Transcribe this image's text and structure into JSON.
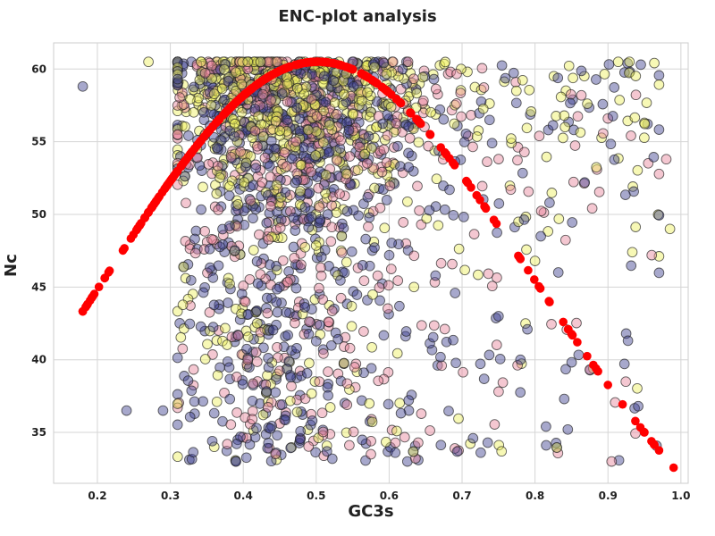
{
  "chart_data": {
    "type": "scatter",
    "title": "ENC-plot analysis",
    "xlabel": "GC3s",
    "ylabel": "Nc",
    "xlim": [
      0.14,
      1.01
    ],
    "ylim": [
      31.5,
      61.8
    ],
    "x_ticks": [
      0.2,
      0.3,
      0.4,
      0.5,
      0.6,
      0.7,
      0.8,
      0.9,
      1.0
    ],
    "x_tick_labels": [
      "0.2",
      "0.3",
      "0.4",
      "0.5",
      "0.6",
      "0.7",
      "0.8",
      "0.9",
      "1.0"
    ],
    "y_ticks": [
      35,
      40,
      45,
      50,
      55,
      60
    ],
    "y_tick_labels": [
      "35",
      "40",
      "45",
      "50",
      "55",
      "60"
    ],
    "grid": true,
    "legend": "none",
    "colors": {
      "expected_curve": "#ff0000",
      "purple_points": "#3b3d8f",
      "pink_points": "#e7829a",
      "yellow_points": "#eef05a",
      "marker_edge": "#222222",
      "grid": "#d5d5d5",
      "axes_edge": "#cccccc"
    },
    "expected_curve": {
      "formula": "2 + GC3s + 29 / (GC3s^2 + (1 - GC3s)^2)",
      "x_range": [
        0.18,
        0.99
      ]
    },
    "observed_genes": {
      "groups": [
        "purple",
        "pink",
        "yellow"
      ],
      "approx_points_per_group": [
        700,
        550,
        650
      ],
      "x_mode": 0.43,
      "x_spread_range": [
        0.18,
        0.99
      ],
      "y_range": [
        32.9,
        60.5
      ],
      "sample_points": [
        {
          "x": 0.18,
          "y": 58.8,
          "group": "purple"
        },
        {
          "x": 0.27,
          "y": 60.5,
          "group": "yellow"
        },
        {
          "x": 0.24,
          "y": 36.5,
          "group": "purple"
        },
        {
          "x": 0.29,
          "y": 36.5,
          "group": "purple"
        },
        {
          "x": 0.98,
          "y": 53.8,
          "group": "pink"
        },
        {
          "x": 0.985,
          "y": 49.0,
          "group": "yellow"
        },
        {
          "x": 0.96,
          "y": 47.2,
          "group": "pink"
        },
        {
          "x": 0.95,
          "y": 56.3,
          "group": "yellow"
        },
        {
          "x": 0.905,
          "y": 33.0,
          "group": "pink"
        },
        {
          "x": 0.88,
          "y": 39.4,
          "group": "yellow"
        },
        {
          "x": 0.925,
          "y": 41.8,
          "group": "purple"
        },
        {
          "x": 0.93,
          "y": 59.8,
          "group": "purple"
        },
        {
          "x": 0.945,
          "y": 60.3,
          "group": "purple"
        },
        {
          "x": 0.9,
          "y": 56.6,
          "group": "pink"
        },
        {
          "x": 0.84,
          "y": 56.8,
          "group": "yellow"
        },
        {
          "x": 0.82,
          "y": 50.8,
          "group": "purple"
        },
        {
          "x": 0.78,
          "y": 40.0,
          "group": "purple"
        },
        {
          "x": 0.815,
          "y": 35.4,
          "group": "purple"
        },
        {
          "x": 0.84,
          "y": 37.3,
          "group": "purple"
        },
        {
          "x": 0.845,
          "y": 35.2,
          "group": "purple"
        },
        {
          "x": 0.715,
          "y": 34.6,
          "group": "purple"
        },
        {
          "x": 0.69,
          "y": 33.9,
          "group": "pink"
        },
        {
          "x": 0.64,
          "y": 33.1,
          "group": "purple"
        },
        {
          "x": 0.625,
          "y": 33.0,
          "group": "purple"
        },
        {
          "x": 0.39,
          "y": 33.0,
          "group": "purple"
        },
        {
          "x": 0.445,
          "y": 33.6,
          "group": "purple"
        },
        {
          "x": 0.575,
          "y": 33.5,
          "group": "pink"
        },
        {
          "x": 0.8,
          "y": 46.8,
          "group": "yellow"
        }
      ]
    }
  }
}
